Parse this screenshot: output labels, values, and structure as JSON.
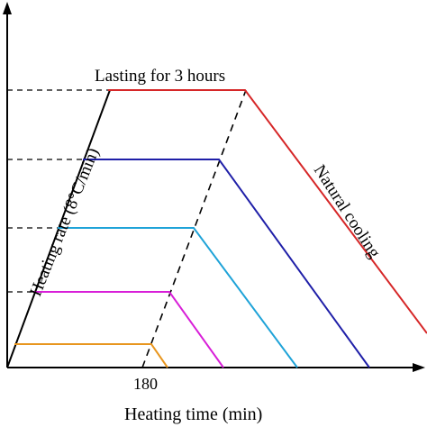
{
  "diagram": {
    "y_axis_label": "Heating rate (8°C/min)",
    "x_axis_label": "Heating time (min)",
    "x_tick_label": "180",
    "hold_label": "Lasting for 3 hours",
    "cooling_label": "Natural cooling",
    "colors": {
      "axis": "#000000",
      "guide": "#000000",
      "heating_line": "#000000",
      "curve_red": "#d62728",
      "curve_blue": "#1f1fa8",
      "curve_cyan": "#1fa3d8",
      "curve_magenta": "#d81fd8",
      "curve_orange": "#e8961f"
    }
  }
}
